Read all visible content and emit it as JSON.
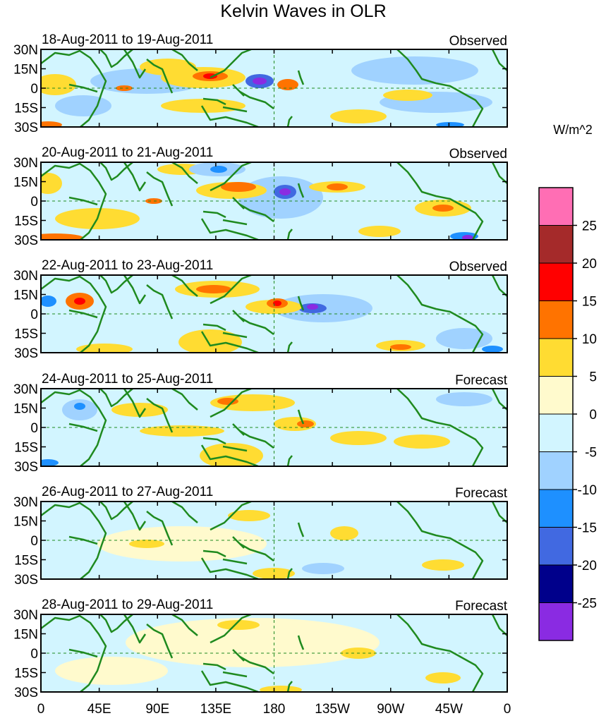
{
  "title": "Kelvin Waves in OLR",
  "units": "W/m^2",
  "panels": [
    {
      "date_range": "18-Aug-2011 to 19-Aug-2011",
      "status": "Observed"
    },
    {
      "date_range": "20-Aug-2011 to 21-Aug-2011",
      "status": "Observed"
    },
    {
      "date_range": "22-Aug-2011 to 23-Aug-2011",
      "status": "Observed"
    },
    {
      "date_range": "24-Aug-2011 to 25-Aug-2011",
      "status": "Forecast"
    },
    {
      "date_range": "26-Aug-2011 to 27-Aug-2011",
      "status": "Forecast"
    },
    {
      "date_range": "28-Aug-2011 to 29-Aug-2011",
      "status": "Forecast"
    }
  ],
  "lat_ticks": [
    "30N",
    "15N",
    "0",
    "15S",
    "30S"
  ],
  "lon_ticks": [
    "0",
    "45E",
    "90E",
    "135E",
    "180",
    "135W",
    "90W",
    "45W",
    "0"
  ],
  "colorbar": {
    "labels": [
      "25",
      "20",
      "15",
      "10",
      "5",
      "0",
      "-5",
      "-10",
      "-15",
      "-20",
      "-25"
    ],
    "colors": [
      "#ff6eb4",
      "#a52a2a",
      "#ff0000",
      "#ff7300",
      "#ffdc32",
      "#fffacd",
      "#d2f5ff",
      "#a0d2ff",
      "#1e90ff",
      "#4169e1",
      "#00008b",
      "#8a2be2"
    ]
  },
  "land_color": "#1f8a1f"
}
